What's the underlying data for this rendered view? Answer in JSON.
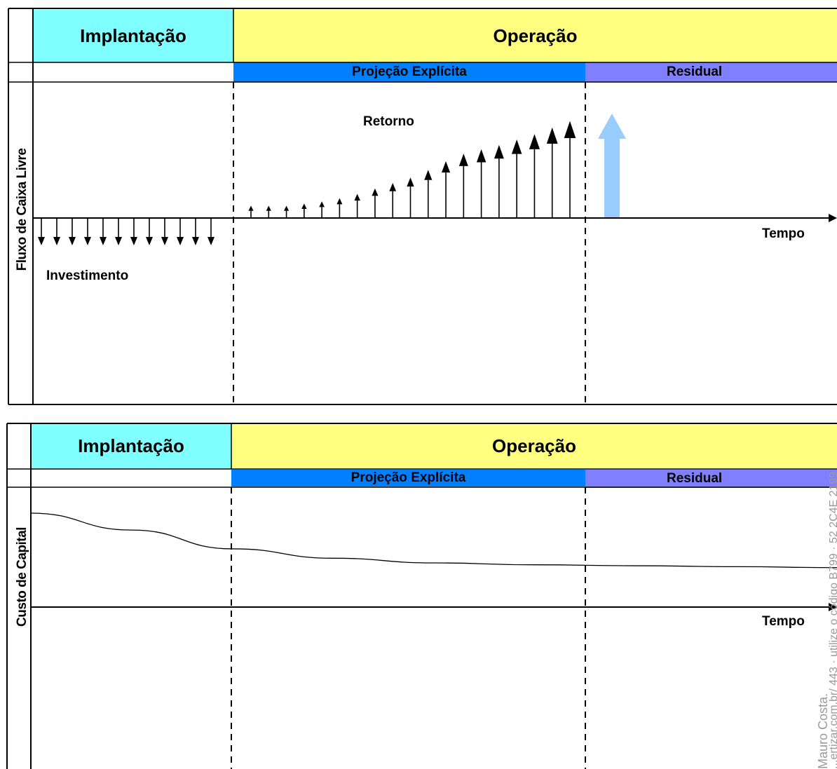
{
  "top": {
    "phase_implantacao": "Implantação",
    "phase_operacao": "Operação",
    "sub_projecao": "Projeção Explícita",
    "sub_residual": "Residual",
    "y_label": "Fluxo de Caixa Livre",
    "label_retorno": "Retorno",
    "label_investimento": "Investimento",
    "label_tempo": "Tempo"
  },
  "bottom": {
    "phase_implantacao": "Implantação",
    "phase_operacao": "Operação",
    "sub_projecao": "Projeção Explícita",
    "sub_residual": "Residual",
    "y_label": "Custo de Capital",
    "label_tempo": "Tempo"
  },
  "watermark": {
    "line1": "Mauro Costa.",
    "line2": "...ertizar.com.br/ 443 · utilize o código B799 · 52 2C4E 2199"
  },
  "colors": {
    "implantacao": "#80ffff",
    "operacao": "#ffff80",
    "projecao": "#0080ff",
    "residual": "#8080ff",
    "terminal_arrow": "#99ccff"
  },
  "chart_data": [
    {
      "type": "bar",
      "description_series": "investment outflows (down arrows) then return inflows (up arrows)",
      "investment_arrows": 12,
      "return_values": [
        1,
        1,
        1,
        1.2,
        1.4,
        1.7,
        2.1,
        2.6,
        3.1,
        3.6,
        4.3,
        5.1,
        5.8,
        6.2,
        6.6,
        7.1,
        7.6,
        8.2,
        8.8
      ],
      "terminal_value": 10
    },
    {
      "type": "line",
      "description_series": "cost of capital declining over time",
      "values": [
        1.0,
        0.82,
        0.62,
        0.52,
        0.47,
        0.45,
        0.44,
        0.43,
        0.42
      ]
    }
  ]
}
